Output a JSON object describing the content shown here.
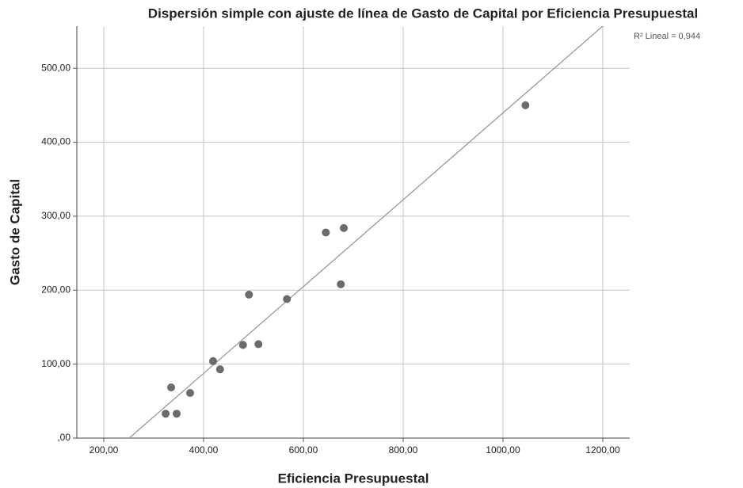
{
  "chart_data": {
    "type": "scatter",
    "title": "Dispersión simple con ajuste de línea de Gasto de Capital por Eficiencia Presupuestal",
    "x_label": "Eficiencia Presupuestal",
    "y_label": "Gasto de Capital",
    "annotation": "R² Lineal = 0,944",
    "x": [
      324,
      346,
      335,
      373,
      419,
      433,
      479,
      510,
      491,
      567,
      645,
      681,
      675,
      1045
    ],
    "values": [
      33,
      33,
      68.5,
      61,
      104,
      93,
      126,
      127,
      194,
      188,
      278,
      284,
      208,
      450
    ],
    "color": "#6b6b6b",
    "fit_line": {
      "slope": 0.587,
      "intercept": -147.3,
      "color": "#999999"
    },
    "xlim": [
      146,
      1254
    ],
    "ylim": [
      0,
      557
    ],
    "xticks": [
      {
        "value": 200,
        "label": "200,00"
      },
      {
        "value": 400,
        "label": "400,00"
      },
      {
        "value": 600,
        "label": "600,00"
      },
      {
        "value": 800,
        "label": "800,00"
      },
      {
        "value": 1000,
        "label": "1000,00"
      },
      {
        "value": 1200,
        "label": "1200,00"
      }
    ],
    "yticks": [
      {
        "value": 0,
        "label": ",00"
      },
      {
        "value": 100,
        "label": "100,00"
      },
      {
        "value": 200,
        "label": "200,00"
      },
      {
        "value": 300,
        "label": "300,00"
      },
      {
        "value": 400,
        "label": "400,00"
      },
      {
        "value": 500,
        "label": "500,00"
      }
    ],
    "grid": true
  }
}
